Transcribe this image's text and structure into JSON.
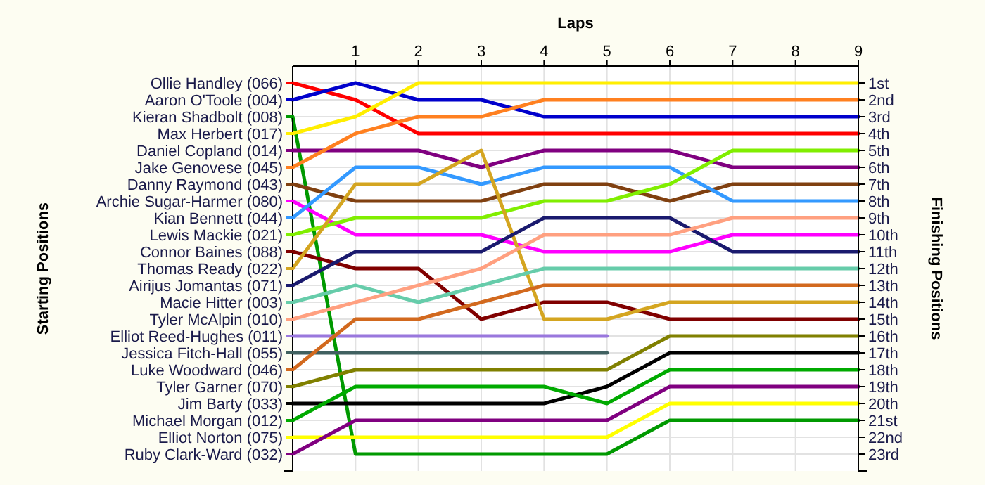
{
  "chart_data": {
    "type": "line",
    "xlabel": "Laps",
    "annotations": [
      "Starting Positions"
    ],
    "legend": "left",
    "y2label": "Finishing Positions",
    "grid": true,
    "x": [
      0,
      1,
      2,
      3,
      4,
      5,
      6,
      7,
      8,
      9
    ],
    "xlim": [
      0,
      9
    ],
    "xticks": [
      1,
      2,
      3,
      4,
      5,
      6,
      7,
      8,
      9
    ],
    "y2lim": [
      24,
      0
    ],
    "y2ticks": [
      {
        "value": 1,
        "label": "1st"
      },
      {
        "value": 2,
        "label": "2nd"
      },
      {
        "value": 3,
        "label": "3rd"
      },
      {
        "value": 4,
        "label": "4th"
      },
      {
        "value": 5,
        "label": "5th"
      },
      {
        "value": 6,
        "label": "6th"
      },
      {
        "value": 7,
        "label": "7th"
      },
      {
        "value": 8,
        "label": "8th"
      },
      {
        "value": 9,
        "label": "9th"
      },
      {
        "value": 10,
        "label": "10th"
      },
      {
        "value": 11,
        "label": "11th"
      },
      {
        "value": 12,
        "label": "12th"
      },
      {
        "value": 13,
        "label": "13th"
      },
      {
        "value": 14,
        "label": "14th"
      },
      {
        "value": 15,
        "label": "15th"
      },
      {
        "value": 16,
        "label": "16th"
      },
      {
        "value": 17,
        "label": "17th"
      },
      {
        "value": 18,
        "label": "18th"
      },
      {
        "value": 19,
        "label": "19th"
      },
      {
        "value": 20,
        "label": "20th"
      },
      {
        "value": 21,
        "label": "21st"
      },
      {
        "value": 22,
        "label": "22nd"
      },
      {
        "value": 23,
        "label": "23rd"
      }
    ],
    "series": [
      {
        "name": "Ollie Handley (066)",
        "axis": "y2",
        "color": "#ff0000",
        "values": [
          1,
          2,
          4,
          4,
          4,
          4,
          4,
          4,
          4,
          4
        ]
      },
      {
        "name": "Aaron O'Toole (004)",
        "axis": "y2",
        "color": "#0000cc",
        "values": [
          2,
          1,
          2,
          2,
          3,
          3,
          3,
          3,
          3,
          3
        ]
      },
      {
        "name": "Kieran Shadbolt (008)",
        "axis": "y2",
        "color": "#009900",
        "values": [
          3,
          23,
          23,
          23,
          23,
          23,
          21,
          21,
          21,
          21
        ]
      },
      {
        "name": "Max Herbert (017)",
        "axis": "y2",
        "color": "#ffee00",
        "values": [
          4,
          3,
          1,
          1,
          1,
          1,
          1,
          1,
          1,
          1
        ]
      },
      {
        "name": "Daniel Copland (014)",
        "axis": "y2",
        "color": "#800080",
        "values": [
          5,
          5,
          5,
          6,
          5,
          5,
          5,
          6,
          6,
          6
        ]
      },
      {
        "name": "Jake Genovese (045)",
        "axis": "y2",
        "color": "#ff8020",
        "values": [
          6,
          4,
          3,
          3,
          2,
          2,
          2,
          2,
          2,
          2
        ]
      },
      {
        "name": "Danny Raymond (043)",
        "axis": "y2",
        "color": "#804010",
        "values": [
          7,
          8,
          8,
          8,
          7,
          7,
          8,
          7,
          7,
          7
        ]
      },
      {
        "name": "Archie Sugar-Harmer (080)",
        "axis": "y2",
        "color": "#ff00ff",
        "values": [
          8,
          10,
          10,
          10,
          11,
          11,
          11,
          10,
          10,
          10
        ]
      },
      {
        "name": "Kian Bennett (044)",
        "axis": "y2",
        "color": "#3399ff",
        "values": [
          9,
          6,
          6,
          7,
          6,
          6,
          6,
          8,
          8,
          8
        ]
      },
      {
        "name": "Lewis Mackie (021)",
        "axis": "y2",
        "color": "#80ee00",
        "values": [
          10,
          9,
          9,
          9,
          8,
          8,
          7,
          5,
          5,
          5
        ]
      },
      {
        "name": "Connor Baines (088)",
        "axis": "y2",
        "color": "#800000",
        "values": [
          11,
          12,
          12,
          15,
          14,
          14,
          15,
          15,
          15,
          15
        ]
      },
      {
        "name": "Thomas Ready (022)",
        "axis": "y2",
        "color": "#d4a520",
        "values": [
          12,
          7,
          7,
          5,
          15,
          15,
          14,
          14,
          14,
          14
        ]
      },
      {
        "name": "Airijus Jomantas (071)",
        "axis": "y2",
        "color": "#1a1a6e",
        "values": [
          13,
          11,
          11,
          11,
          9,
          9,
          9,
          11,
          11,
          11
        ]
      },
      {
        "name": "Macie Hitter (003)",
        "axis": "y2",
        "color": "#66ccaa",
        "values": [
          14,
          13,
          14,
          13,
          12,
          12,
          12,
          12,
          12,
          12
        ]
      },
      {
        "name": "Tyler McAlpin (010)",
        "axis": "y2",
        "color": "#ffa080",
        "values": [
          15,
          14,
          13,
          12,
          10,
          10,
          10,
          9,
          9,
          9
        ]
      },
      {
        "name": "Elliot Reed-Hughes (011)",
        "axis": "y2",
        "color": "#9977dd",
        "values": [
          16,
          16,
          16,
          16,
          16,
          16,
          null,
          null,
          null,
          null
        ]
      },
      {
        "name": "Jessica Fitch-Hall (055)",
        "axis": "y2",
        "color": "#406060",
        "values": [
          17,
          17,
          17,
          17,
          17,
          17,
          null,
          null,
          null,
          null
        ]
      },
      {
        "name": "Luke Woodward (046)",
        "axis": "y2",
        "color": "#d2691e",
        "values": [
          18,
          15,
          15,
          14,
          13,
          13,
          13,
          13,
          13,
          13
        ]
      },
      {
        "name": "Tyler Garner (070)",
        "axis": "y2",
        "color": "#808000",
        "values": [
          19,
          18,
          18,
          18,
          18,
          18,
          16,
          16,
          16,
          16
        ]
      },
      {
        "name": "Jim Barty (033)",
        "axis": "y2",
        "color": "#000000",
        "values": [
          20,
          20,
          20,
          20,
          20,
          19,
          17,
          17,
          17,
          17
        ]
      },
      {
        "name": "Michael Morgan (012)",
        "axis": "y2",
        "color": "#00aa00",
        "values": [
          21,
          19,
          19,
          19,
          19,
          20,
          18,
          18,
          18,
          18
        ]
      },
      {
        "name": "Elliot Norton  (075)",
        "axis": "y2",
        "color": "#ffff00",
        "values": [
          22,
          22,
          22,
          22,
          22,
          22,
          20,
          20,
          20,
          20
        ]
      },
      {
        "name": "Ruby Clark-Ward (032)",
        "axis": "y2",
        "color": "#800080",
        "values": [
          23,
          21,
          21,
          21,
          21,
          21,
          19,
          19,
          19,
          19
        ]
      }
    ]
  }
}
